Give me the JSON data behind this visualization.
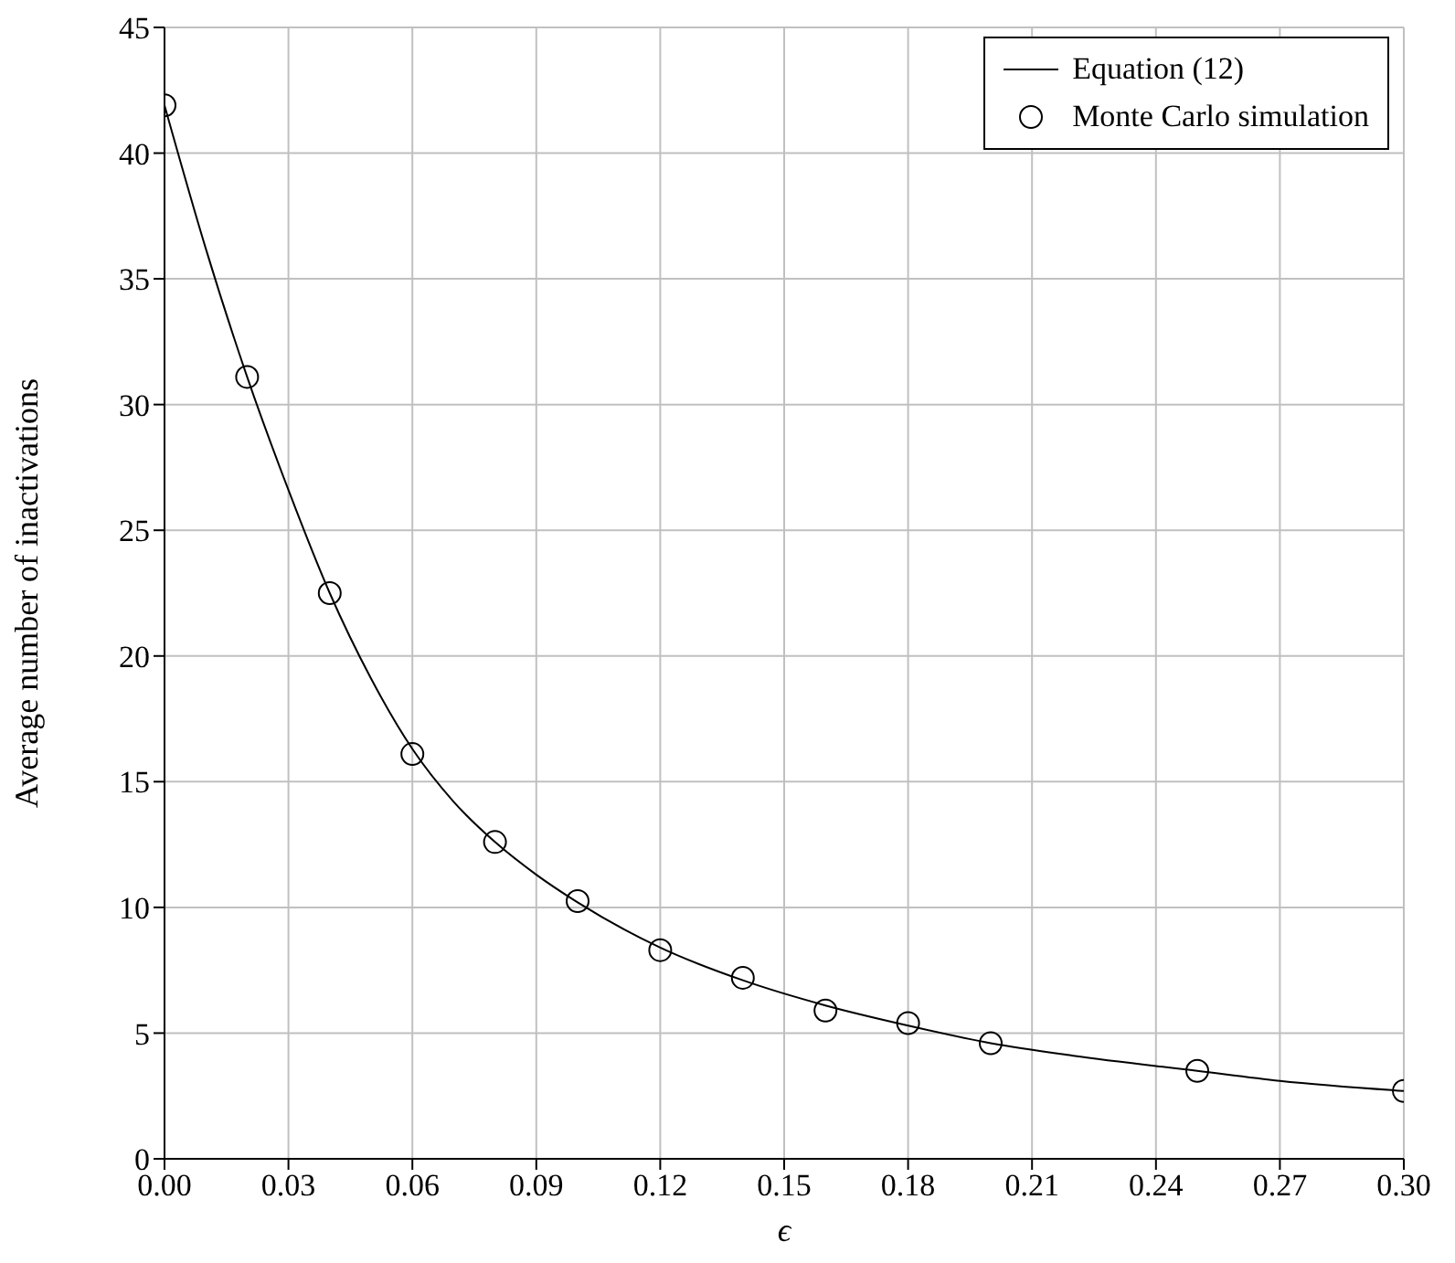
{
  "chart_data": {
    "type": "line",
    "xlabel": "ϵ",
    "ylabel": "Average number of inactivations",
    "xlim": [
      0,
      0.3
    ],
    "xticks": [
      {
        "value": 0,
        "label": "0.00"
      },
      {
        "value": 0.03,
        "label": "0.03"
      },
      {
        "value": 0.06,
        "label": "0.06"
      },
      {
        "value": 0.09,
        "label": "0.09"
      },
      {
        "value": 0.12,
        "label": "0.12"
      },
      {
        "value": 0.15,
        "label": "0.15"
      },
      {
        "value": 0.18,
        "label": "0.18"
      },
      {
        "value": 0.21,
        "label": "0.21"
      },
      {
        "value": 0.24,
        "label": "0.24"
      },
      {
        "value": 0.27,
        "label": "0.27"
      },
      {
        "value": 0.3,
        "label": "0.30"
      }
    ],
    "ylim": [
      0,
      45
    ],
    "yticks": [
      0,
      5,
      10,
      15,
      20,
      25,
      30,
      35,
      40,
      45
    ],
    "grid": true,
    "legend": "top right",
    "series": [
      {
        "name": "Equation (12)",
        "color": "#000000",
        "marker": "none",
        "line_style": "solid",
        "x": [
          0,
          0.01,
          0.02,
          0.03,
          0.04,
          0.05,
          0.06,
          0.07,
          0.08,
          0.09,
          0.1,
          0.12,
          0.14,
          0.16,
          0.18,
          0.2,
          0.22,
          0.25,
          0.27,
          0.3
        ],
        "values": [
          41.9,
          36.2,
          31.1,
          26.6,
          22.5,
          19.1,
          16.3,
          14.2,
          12.6,
          11.3,
          10.2,
          8.4,
          7.1,
          6.1,
          5.3,
          4.6,
          4.1,
          3.5,
          3.1,
          2.7
        ]
      },
      {
        "name": "Monte Carlo simulation",
        "type": "scatter",
        "color": "#000000",
        "marker": "circle",
        "x": [
          0,
          0.02,
          0.04,
          0.06,
          0.08,
          0.1,
          0.12,
          0.14,
          0.16,
          0.18,
          0.2,
          0.25,
          0.3
        ],
        "values": [
          41.9,
          31.1,
          22.5,
          16.1,
          12.6,
          10.25,
          8.3,
          7.2,
          5.9,
          5.4,
          4.6,
          3.5,
          2.7
        ]
      }
    ]
  }
}
